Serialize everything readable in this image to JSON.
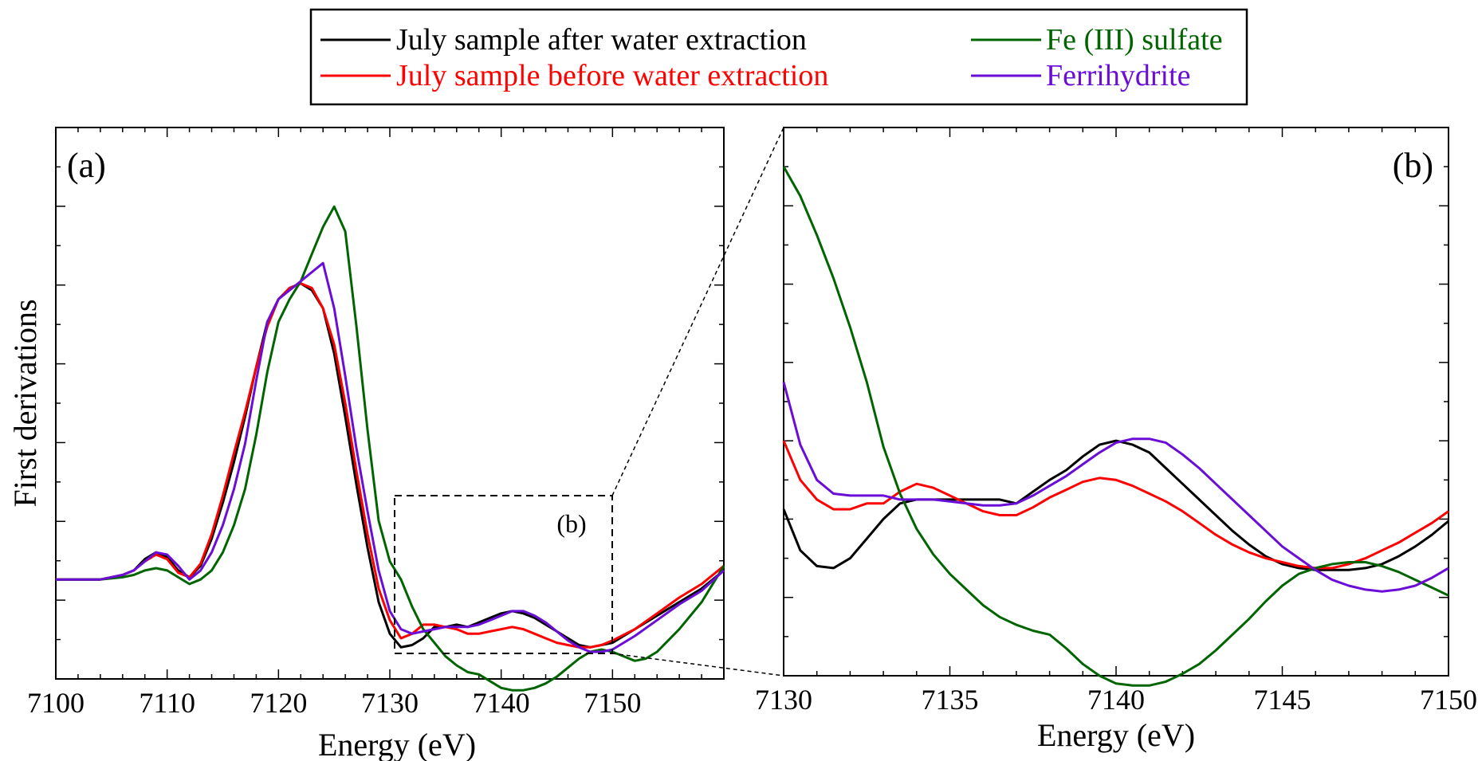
{
  "legend": {
    "entries": [
      {
        "label": "July sample after water extraction",
        "color": "#000000"
      },
      {
        "label": "July sample before water extraction",
        "color": "#ff0000"
      },
      {
        "label": "Fe (III) sulfate",
        "color": "#006400"
      },
      {
        "label": "Ferrihydrite",
        "color": "#6a0dd6"
      }
    ]
  },
  "chart_data": [
    {
      "type": "line",
      "panel_label": "(a)",
      "inset_label": "(b)",
      "xlabel": "Energy (eV)",
      "ylabel": "First derivations",
      "xlim": [
        7100,
        7160
      ],
      "ylim": [
        -0.22,
        1.0
      ],
      "x_ticks": [
        7100,
        7110,
        7120,
        7130,
        7140,
        7150
      ],
      "zoom_box": {
        "x": [
          7130,
          7150
        ],
        "y": [
          -0.2,
          0.08
        ]
      },
      "y_tick_labels": "none",
      "series": [
        {
          "name": "July sample after water extraction",
          "color": "#000000",
          "x": [
            7100,
            7104,
            7106,
            7107,
            7108,
            7109,
            7110,
            7111,
            7112,
            7113,
            7114,
            7115,
            7116,
            7117,
            7118,
            7119,
            7120,
            7121,
            7122,
            7123,
            7124,
            7125,
            7126,
            7127,
            7128,
            7129,
            7130,
            7131,
            7132,
            7133,
            7134,
            7135,
            7136,
            7137,
            7138,
            7139,
            7140,
            7141,
            7142,
            7143,
            7144,
            7145,
            7146,
            7147,
            7148,
            7149,
            7150,
            7152,
            7154,
            7156,
            7158,
            7160
          ],
          "y": [
            0.0,
            0.0,
            0.01,
            0.02,
            0.045,
            0.06,
            0.05,
            0.02,
            0.005,
            0.03,
            0.09,
            0.17,
            0.26,
            0.36,
            0.47,
            0.57,
            0.62,
            0.645,
            0.655,
            0.64,
            0.6,
            0.5,
            0.36,
            0.21,
            0.07,
            -0.05,
            -0.12,
            -0.15,
            -0.145,
            -0.13,
            -0.105,
            -0.105,
            -0.1,
            -0.105,
            -0.095,
            -0.085,
            -0.075,
            -0.07,
            -0.075,
            -0.085,
            -0.1,
            -0.115,
            -0.13,
            -0.145,
            -0.15,
            -0.145,
            -0.14,
            -0.11,
            -0.08,
            -0.05,
            -0.02,
            0.02
          ]
        },
        {
          "name": "July sample before water extraction",
          "color": "#ff0000",
          "x": [
            7100,
            7104,
            7106,
            7107,
            7108,
            7109,
            7110,
            7111,
            7112,
            7113,
            7114,
            7115,
            7116,
            7117,
            7118,
            7119,
            7120,
            7121,
            7122,
            7123,
            7124,
            7125,
            7126,
            7127,
            7128,
            7129,
            7130,
            7131,
            7132,
            7133,
            7134,
            7135,
            7136,
            7137,
            7138,
            7139,
            7140,
            7141,
            7142,
            7143,
            7144,
            7145,
            7146,
            7147,
            7148,
            7149,
            7150,
            7152,
            7154,
            7156,
            7158,
            7160
          ],
          "y": [
            0.0,
            0.0,
            0.01,
            0.02,
            0.04,
            0.055,
            0.045,
            0.015,
            0.005,
            0.035,
            0.1,
            0.185,
            0.28,
            0.37,
            0.47,
            0.56,
            0.62,
            0.645,
            0.655,
            0.645,
            0.6,
            0.52,
            0.39,
            0.24,
            0.1,
            -0.02,
            -0.09,
            -0.13,
            -0.12,
            -0.1,
            -0.1,
            -0.105,
            -0.11,
            -0.12,
            -0.12,
            -0.115,
            -0.11,
            -0.105,
            -0.11,
            -0.12,
            -0.13,
            -0.14,
            -0.145,
            -0.15,
            -0.15,
            -0.145,
            -0.135,
            -0.11,
            -0.075,
            -0.04,
            -0.01,
            0.03
          ]
        },
        {
          "name": "Fe (III) sulfate",
          "color": "#006400",
          "x": [
            7100,
            7104,
            7106,
            7107,
            7108,
            7109,
            7110,
            7111,
            7112,
            7113,
            7114,
            7115,
            7116,
            7117,
            7118,
            7119,
            7120,
            7121,
            7122,
            7123,
            7124,
            7125,
            7126,
            7127,
            7128,
            7129,
            7130,
            7131,
            7132,
            7133,
            7134,
            7135,
            7136,
            7137,
            7138,
            7139,
            7140,
            7141,
            7142,
            7143,
            7144,
            7145,
            7146,
            7147,
            7148,
            7149,
            7150,
            7151,
            7152,
            7153,
            7154,
            7156,
            7158,
            7160
          ],
          "y": [
            0.0,
            0.0,
            0.005,
            0.01,
            0.02,
            0.025,
            0.02,
            0.005,
            -0.01,
            0.0,
            0.02,
            0.06,
            0.12,
            0.2,
            0.32,
            0.46,
            0.57,
            0.62,
            0.66,
            0.72,
            0.78,
            0.825,
            0.77,
            0.56,
            0.33,
            0.13,
            0.04,
            0.0,
            -0.06,
            -0.11,
            -0.14,
            -0.17,
            -0.19,
            -0.205,
            -0.21,
            -0.225,
            -0.24,
            -0.245,
            -0.245,
            -0.24,
            -0.23,
            -0.215,
            -0.195,
            -0.175,
            -0.16,
            -0.155,
            -0.16,
            -0.17,
            -0.18,
            -0.175,
            -0.16,
            -0.11,
            -0.05,
            0.03
          ]
        },
        {
          "name": "Ferrihydrite",
          "color": "#6a0dd6",
          "x": [
            7100,
            7104,
            7106,
            7107,
            7108,
            7109,
            7110,
            7111,
            7112,
            7113,
            7114,
            7115,
            7116,
            7117,
            7118,
            7119,
            7120,
            7121,
            7122,
            7123,
            7124,
            7125,
            7126,
            7127,
            7128,
            7129,
            7130,
            7131,
            7132,
            7133,
            7134,
            7135,
            7136,
            7137,
            7138,
            7139,
            7140,
            7141,
            7142,
            7143,
            7144,
            7145,
            7146,
            7147,
            7148,
            7149,
            7150,
            7152,
            7154,
            7156,
            7158,
            7160
          ],
          "y": [
            0.0,
            0.0,
            0.01,
            0.02,
            0.04,
            0.06,
            0.055,
            0.03,
            0.0,
            0.02,
            0.06,
            0.12,
            0.2,
            0.3,
            0.44,
            0.57,
            0.62,
            0.64,
            0.66,
            0.68,
            0.7,
            0.6,
            0.45,
            0.29,
            0.15,
            0.02,
            -0.07,
            -0.11,
            -0.12,
            -0.115,
            -0.11,
            -0.105,
            -0.105,
            -0.105,
            -0.1,
            -0.09,
            -0.08,
            -0.07,
            -0.07,
            -0.08,
            -0.095,
            -0.115,
            -0.135,
            -0.15,
            -0.16,
            -0.16,
            -0.155,
            -0.125,
            -0.09,
            -0.055,
            -0.025,
            0.02
          ]
        }
      ]
    },
    {
      "type": "line",
      "panel_label": "(b)",
      "xlabel": "Energy (eV)",
      "ylabel": "",
      "xlim": [
        7130,
        7150
      ],
      "ylim": [
        -0.2,
        0.08
      ],
      "x_ticks": [
        7130,
        7135,
        7140,
        7145,
        7150
      ],
      "y_tick_labels": "none",
      "series": [
        {
          "name": "July sample after water extraction",
          "color": "#000000",
          "x": [
            7130,
            7130.5,
            7131,
            7131.5,
            7132,
            7132.5,
            7133,
            7133.5,
            7134,
            7134.5,
            7135,
            7135.5,
            7136,
            7136.5,
            7137,
            7137.5,
            7138,
            7138.5,
            7139,
            7139.5,
            7140,
            7140.5,
            7141,
            7141.5,
            7142,
            7142.5,
            7143,
            7143.5,
            7144,
            7144.5,
            7145,
            7145.5,
            7146,
            7146.5,
            7147,
            7147.5,
            7148,
            7148.5,
            7149,
            7149.5,
            7150
          ],
          "y": [
            -0.115,
            -0.136,
            -0.144,
            -0.145,
            -0.14,
            -0.13,
            -0.12,
            -0.112,
            -0.11,
            -0.11,
            -0.11,
            -0.11,
            -0.11,
            -0.11,
            -0.112,
            -0.106,
            -0.1,
            -0.095,
            -0.088,
            -0.082,
            -0.08,
            -0.082,
            -0.086,
            -0.094,
            -0.102,
            -0.11,
            -0.118,
            -0.126,
            -0.133,
            -0.139,
            -0.143,
            -0.145,
            -0.146,
            -0.146,
            -0.146,
            -0.145,
            -0.143,
            -0.139,
            -0.134,
            -0.128,
            -0.121
          ]
        },
        {
          "name": "July sample before water extraction",
          "color": "#ff0000",
          "x": [
            7130,
            7130.5,
            7131,
            7131.5,
            7132,
            7132.5,
            7133,
            7133.5,
            7134,
            7134.5,
            7135,
            7135.5,
            7136,
            7136.5,
            7137,
            7137.5,
            7138,
            7138.5,
            7139,
            7139.5,
            7140,
            7140.5,
            7141,
            7141.5,
            7142,
            7142.5,
            7143,
            7143.5,
            7144,
            7144.5,
            7145,
            7145.5,
            7146,
            7146.5,
            7147,
            7147.5,
            7148,
            7148.5,
            7149,
            7149.5,
            7150
          ],
          "y": [
            -0.08,
            -0.1,
            -0.11,
            -0.115,
            -0.115,
            -0.112,
            -0.112,
            -0.106,
            -0.102,
            -0.104,
            -0.108,
            -0.112,
            -0.116,
            -0.118,
            -0.118,
            -0.114,
            -0.109,
            -0.105,
            -0.101,
            -0.099,
            -0.1,
            -0.103,
            -0.107,
            -0.111,
            -0.116,
            -0.122,
            -0.128,
            -0.133,
            -0.137,
            -0.14,
            -0.142,
            -0.144,
            -0.145,
            -0.145,
            -0.143,
            -0.14,
            -0.136,
            -0.132,
            -0.127,
            -0.122,
            -0.116
          ]
        },
        {
          "name": "Fe (III) sulfate",
          "color": "#006400",
          "x": [
            7130,
            7130.5,
            7131,
            7131.5,
            7132,
            7132.5,
            7133,
            7133.5,
            7134,
            7134.5,
            7135,
            7135.5,
            7136,
            7136.5,
            7137,
            7137.5,
            7138,
            7138.5,
            7139,
            7139.5,
            7140,
            7140.5,
            7141,
            7141.5,
            7142,
            7142.5,
            7143,
            7143.5,
            7144,
            7144.5,
            7145,
            7145.5,
            7146,
            7146.5,
            7147,
            7147.5,
            7148,
            7148.5,
            7149,
            7149.5,
            7150
          ],
          "y": [
            0.06,
            0.045,
            0.025,
            0.003,
            -0.022,
            -0.05,
            -0.083,
            -0.107,
            -0.125,
            -0.138,
            -0.148,
            -0.156,
            -0.164,
            -0.17,
            -0.174,
            -0.177,
            -0.179,
            -0.186,
            -0.194,
            -0.2,
            -0.204,
            -0.205,
            -0.205,
            -0.203,
            -0.199,
            -0.194,
            -0.187,
            -0.179,
            -0.171,
            -0.162,
            -0.154,
            -0.148,
            -0.145,
            -0.143,
            -0.142,
            -0.142,
            -0.144,
            -0.147,
            -0.151,
            -0.155,
            -0.159
          ]
        },
        {
          "name": "Ferrihydrite",
          "color": "#6a0dd6",
          "x": [
            7130,
            7130.5,
            7131,
            7131.5,
            7132,
            7132.5,
            7133,
            7133.5,
            7134,
            7134.5,
            7135,
            7135.5,
            7136,
            7136.5,
            7137,
            7137.5,
            7138,
            7138.5,
            7139,
            7139.5,
            7140,
            7140.5,
            7141,
            7141.5,
            7142,
            7142.5,
            7143,
            7143.5,
            7144,
            7144.5,
            7145,
            7145.5,
            7146,
            7146.5,
            7147,
            7147.5,
            7148,
            7148.5,
            7149,
            7149.5,
            7150
          ],
          "y": [
            -0.05,
            -0.082,
            -0.1,
            -0.107,
            -0.108,
            -0.108,
            -0.108,
            -0.11,
            -0.11,
            -0.11,
            -0.111,
            -0.112,
            -0.113,
            -0.113,
            -0.112,
            -0.108,
            -0.103,
            -0.098,
            -0.092,
            -0.086,
            -0.081,
            -0.079,
            -0.079,
            -0.081,
            -0.087,
            -0.094,
            -0.102,
            -0.11,
            -0.118,
            -0.126,
            -0.134,
            -0.14,
            -0.146,
            -0.151,
            -0.154,
            -0.156,
            -0.157,
            -0.156,
            -0.154,
            -0.15,
            -0.145
          ]
        }
      ]
    }
  ]
}
